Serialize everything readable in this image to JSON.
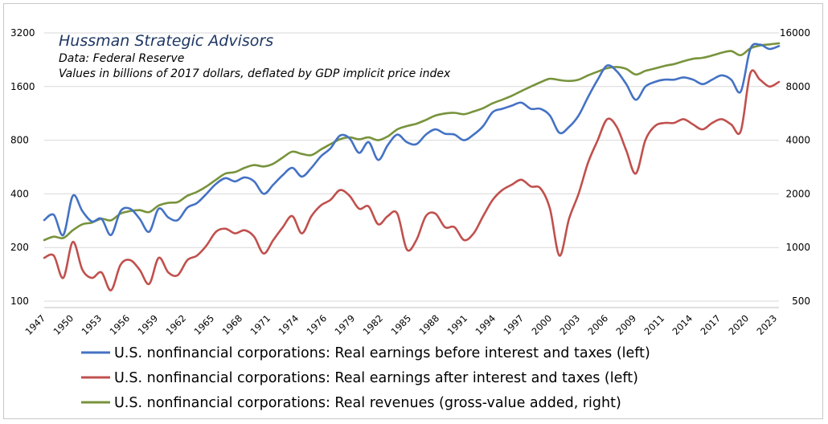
{
  "chart_data": {
    "type": "line",
    "annotations": [
      "Hussman Strategic Advisors",
      "Data: Federal Reserve",
      "Values in billions of 2017 dollars, deflated by GDP implicit price index"
    ],
    "x_tick_labels": [
      "1947",
      "1950",
      "1953",
      "1956",
      "1959",
      "1962",
      "1965",
      "1968",
      "1971",
      "1974",
      "1976",
      "1979",
      "1982",
      "1985",
      "1988",
      "1991",
      "1994",
      "1997",
      "2000",
      "2003",
      "2006",
      "2009",
      "2011",
      "2014",
      "2017",
      "2020",
      "2023"
    ],
    "x_range": [
      1947,
      2024
    ],
    "left_axis": {
      "scale": "log",
      "range": [
        100,
        3200
      ],
      "ticks": [
        100,
        200,
        400,
        800,
        1600,
        3200
      ],
      "tick_labels": [
        "100",
        "200",
        "400",
        "800",
        "1600",
        "3200"
      ]
    },
    "right_axis": {
      "scale": "log",
      "range": [
        500,
        16000
      ],
      "ticks": [
        500,
        1000,
        2000,
        4000,
        8000,
        16000
      ],
      "tick_labels": [
        "500",
        "1000",
        "2000",
        "4000",
        "8000",
        "16000"
      ]
    },
    "grid": "horizontal",
    "legend_position": "bottom",
    "series": [
      {
        "name": "U.S. nonfinancial corporations: Real earnings before interest and taxes (left)",
        "axis": "left",
        "color": "#4472c4",
        "points": [
          [
            1947,
            285
          ],
          [
            1948,
            305
          ],
          [
            1949,
            235
          ],
          [
            1950,
            390
          ],
          [
            1951,
            320
          ],
          [
            1952,
            280
          ],
          [
            1953,
            290
          ],
          [
            1954,
            235
          ],
          [
            1955,
            320
          ],
          [
            1956,
            330
          ],
          [
            1957,
            290
          ],
          [
            1958,
            245
          ],
          [
            1959,
            330
          ],
          [
            1960,
            295
          ],
          [
            1961,
            285
          ],
          [
            1962,
            335
          ],
          [
            1963,
            355
          ],
          [
            1964,
            400
          ],
          [
            1965,
            455
          ],
          [
            1966,
            490
          ],
          [
            1967,
            470
          ],
          [
            1968,
            495
          ],
          [
            1969,
            470
          ],
          [
            1970,
            400
          ],
          [
            1971,
            450
          ],
          [
            1972,
            510
          ],
          [
            1973,
            560
          ],
          [
            1974,
            500
          ],
          [
            1975,
            560
          ],
          [
            1976,
            650
          ],
          [
            1977,
            720
          ],
          [
            1978,
            850
          ],
          [
            1979,
            820
          ],
          [
            1980,
            680
          ],
          [
            1981,
            780
          ],
          [
            1982,
            620
          ],
          [
            1983,
            750
          ],
          [
            1984,
            860
          ],
          [
            1985,
            780
          ],
          [
            1986,
            760
          ],
          [
            1987,
            860
          ],
          [
            1988,
            920
          ],
          [
            1989,
            870
          ],
          [
            1990,
            860
          ],
          [
            1991,
            800
          ],
          [
            1992,
            860
          ],
          [
            1993,
            960
          ],
          [
            1994,
            1150
          ],
          [
            1995,
            1200
          ],
          [
            1996,
            1250
          ],
          [
            1997,
            1300
          ],
          [
            1998,
            1200
          ],
          [
            1999,
            1200
          ],
          [
            2000,
            1100
          ],
          [
            2001,
            880
          ],
          [
            2002,
            950
          ],
          [
            2003,
            1100
          ],
          [
            2004,
            1400
          ],
          [
            2005,
            1750
          ],
          [
            2006,
            2100
          ],
          [
            2007,
            1950
          ],
          [
            2008,
            1650
          ],
          [
            2009,
            1350
          ],
          [
            2010,
            1600
          ],
          [
            2011,
            1700
          ],
          [
            2012,
            1750
          ],
          [
            2013,
            1750
          ],
          [
            2014,
            1800
          ],
          [
            2015,
            1750
          ],
          [
            2016,
            1650
          ],
          [
            2017,
            1750
          ],
          [
            2018,
            1850
          ],
          [
            2019,
            1750
          ],
          [
            2020,
            1500
          ],
          [
            2021,
            2600
          ],
          [
            2022,
            2750
          ],
          [
            2023,
            2600
          ],
          [
            2024,
            2700
          ]
        ]
      },
      {
        "name": "U.S. nonfinancial corporations: Real earnings after interest and taxes (left)",
        "axis": "left",
        "color": "#c0504d",
        "points": [
          [
            1947,
            175
          ],
          [
            1948,
            180
          ],
          [
            1949,
            135
          ],
          [
            1950,
            215
          ],
          [
            1951,
            150
          ],
          [
            1952,
            135
          ],
          [
            1953,
            145
          ],
          [
            1954,
            115
          ],
          [
            1955,
            160
          ],
          [
            1956,
            170
          ],
          [
            1957,
            150
          ],
          [
            1958,
            125
          ],
          [
            1959,
            175
          ],
          [
            1960,
            145
          ],
          [
            1961,
            140
          ],
          [
            1962,
            170
          ],
          [
            1963,
            180
          ],
          [
            1964,
            205
          ],
          [
            1965,
            245
          ],
          [
            1966,
            255
          ],
          [
            1967,
            240
          ],
          [
            1968,
            250
          ],
          [
            1969,
            230
          ],
          [
            1970,
            185
          ],
          [
            1971,
            220
          ],
          [
            1972,
            260
          ],
          [
            1973,
            300
          ],
          [
            1974,
            240
          ],
          [
            1975,
            300
          ],
          [
            1976,
            345
          ],
          [
            1977,
            370
          ],
          [
            1978,
            420
          ],
          [
            1979,
            390
          ],
          [
            1980,
            330
          ],
          [
            1981,
            340
          ],
          [
            1982,
            270
          ],
          [
            1983,
            300
          ],
          [
            1984,
            310
          ],
          [
            1985,
            195
          ],
          [
            1986,
            220
          ],
          [
            1987,
            300
          ],
          [
            1988,
            310
          ],
          [
            1989,
            260
          ],
          [
            1990,
            260
          ],
          [
            1991,
            220
          ],
          [
            1992,
            240
          ],
          [
            1993,
            300
          ],
          [
            1994,
            370
          ],
          [
            1995,
            420
          ],
          [
            1996,
            450
          ],
          [
            1997,
            480
          ],
          [
            1998,
            440
          ],
          [
            1999,
            430
          ],
          [
            2000,
            330
          ],
          [
            2001,
            180
          ],
          [
            2002,
            290
          ],
          [
            2003,
            400
          ],
          [
            2004,
            600
          ],
          [
            2005,
            800
          ],
          [
            2006,
            1050
          ],
          [
            2007,
            950
          ],
          [
            2008,
            700
          ],
          [
            2009,
            520
          ],
          [
            2010,
            800
          ],
          [
            2011,
            960
          ],
          [
            2012,
            1000
          ],
          [
            2013,
            1000
          ],
          [
            2014,
            1050
          ],
          [
            2015,
            980
          ],
          [
            2016,
            920
          ],
          [
            2017,
            1000
          ],
          [
            2018,
            1050
          ],
          [
            2019,
            980
          ],
          [
            2020,
            900
          ],
          [
            2021,
            1900
          ],
          [
            2022,
            1750
          ],
          [
            2023,
            1600
          ],
          [
            2024,
            1700
          ]
        ]
      },
      {
        "name": "U.S. nonfinancial corporations: Real revenues (gross-value added, right)",
        "axis": "right",
        "color": "#77933c",
        "points": [
          [
            1947,
            1100
          ],
          [
            1948,
            1150
          ],
          [
            1949,
            1130
          ],
          [
            1950,
            1250
          ],
          [
            1951,
            1350
          ],
          [
            1952,
            1380
          ],
          [
            1953,
            1450
          ],
          [
            1954,
            1420
          ],
          [
            1955,
            1550
          ],
          [
            1956,
            1600
          ],
          [
            1957,
            1620
          ],
          [
            1958,
            1580
          ],
          [
            1959,
            1720
          ],
          [
            1960,
            1780
          ],
          [
            1961,
            1800
          ],
          [
            1962,
            1950
          ],
          [
            1963,
            2050
          ],
          [
            1964,
            2200
          ],
          [
            1965,
            2400
          ],
          [
            1966,
            2600
          ],
          [
            1967,
            2650
          ],
          [
            1968,
            2800
          ],
          [
            1969,
            2900
          ],
          [
            1970,
            2850
          ],
          [
            1971,
            2950
          ],
          [
            1972,
            3200
          ],
          [
            1973,
            3450
          ],
          [
            1974,
            3350
          ],
          [
            1975,
            3300
          ],
          [
            1976,
            3550
          ],
          [
            1977,
            3800
          ],
          [
            1978,
            4050
          ],
          [
            1979,
            4150
          ],
          [
            1980,
            4050
          ],
          [
            1981,
            4150
          ],
          [
            1982,
            4000
          ],
          [
            1983,
            4200
          ],
          [
            1984,
            4600
          ],
          [
            1985,
            4800
          ],
          [
            1986,
            4950
          ],
          [
            1987,
            5200
          ],
          [
            1988,
            5500
          ],
          [
            1989,
            5650
          ],
          [
            1990,
            5700
          ],
          [
            1991,
            5600
          ],
          [
            1992,
            5800
          ],
          [
            1993,
            6050
          ],
          [
            1994,
            6450
          ],
          [
            1995,
            6750
          ],
          [
            1996,
            7100
          ],
          [
            1997,
            7550
          ],
          [
            1998,
            8000
          ],
          [
            1999,
            8450
          ],
          [
            2000,
            8850
          ],
          [
            2001,
            8700
          ],
          [
            2002,
            8600
          ],
          [
            2003,
            8750
          ],
          [
            2004,
            9250
          ],
          [
            2005,
            9700
          ],
          [
            2006,
            10150
          ],
          [
            2007,
            10300
          ],
          [
            2008,
            10050
          ],
          [
            2009,
            9350
          ],
          [
            2010,
            9800
          ],
          [
            2011,
            10100
          ],
          [
            2012,
            10450
          ],
          [
            2013,
            10700
          ],
          [
            2014,
            11100
          ],
          [
            2015,
            11450
          ],
          [
            2016,
            11600
          ],
          [
            2017,
            11950
          ],
          [
            2018,
            12400
          ],
          [
            2019,
            12650
          ],
          [
            2020,
            12000
          ],
          [
            2021,
            13100
          ],
          [
            2022,
            13600
          ],
          [
            2023,
            13800
          ],
          [
            2024,
            14000
          ]
        ]
      }
    ]
  }
}
